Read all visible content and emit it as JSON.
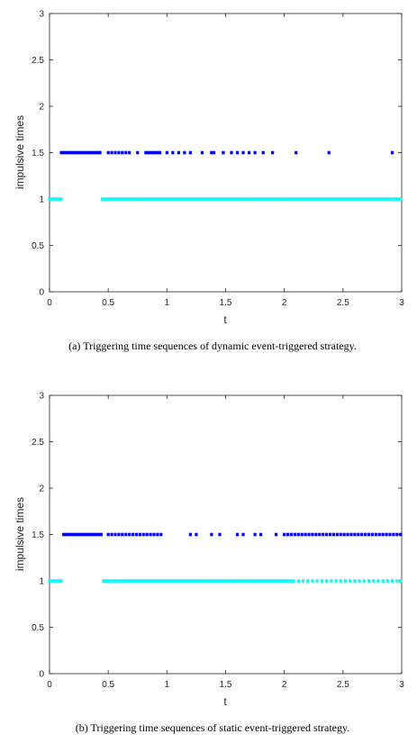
{
  "chart_data": [
    {
      "type": "scatter",
      "caption": "(a)  Triggering time sequences of dynamic event-triggered strategy.",
      "xlabel": "t",
      "ylabel": "impulsive times",
      "xlim": [
        0,
        3
      ],
      "ylim": [
        0,
        3
      ],
      "xticks": [
        "0",
        "0.5",
        "1",
        "1.5",
        "2",
        "2.5",
        "3"
      ],
      "yticks": [
        "0",
        "0.5",
        "1",
        "1.5",
        "2",
        "2.5",
        "3"
      ],
      "grid": false,
      "series": [
        {
          "color": "#0000ee",
          "y": 1.5,
          "x": [
            0.1,
            0.12,
            0.14,
            0.16,
            0.18,
            0.2,
            0.22,
            0.24,
            0.26,
            0.28,
            0.3,
            0.32,
            0.34,
            0.36,
            0.38,
            0.4,
            0.42,
            0.43,
            0.5,
            0.53,
            0.56,
            0.59,
            0.62,
            0.65,
            0.68,
            0.75,
            0.82,
            0.84,
            0.86,
            0.88,
            0.9,
            0.92,
            0.94,
            1.0,
            1.05,
            1.1,
            1.15,
            1.2,
            1.3,
            1.38,
            1.4,
            1.48,
            1.55,
            1.6,
            1.65,
            1.7,
            1.75,
            1.82,
            1.9,
            2.1,
            2.38,
            2.92
          ]
        },
        {
          "color": "#00ffff",
          "y": 1,
          "x": [
            0.0,
            0.02,
            0.04,
            0.06,
            0.08,
            0.1,
            0.45,
            0.47,
            0.49,
            0.51,
            0.53,
            0.55,
            0.57,
            0.59,
            0.61,
            0.63,
            0.65,
            0.67,
            0.69,
            0.71,
            0.73,
            0.75,
            0.77,
            0.79,
            0.81,
            0.83,
            0.85,
            0.87,
            0.89,
            0.91,
            0.93,
            0.95,
            0.97,
            0.99,
            1.01,
            1.03,
            1.05,
            1.07,
            1.09,
            1.11,
            1.13,
            1.15,
            1.17,
            1.19,
            1.21,
            1.23,
            1.25,
            1.27,
            1.29,
            1.31,
            1.33,
            1.35,
            1.37,
            1.39,
            1.41,
            1.43,
            1.45,
            1.47,
            1.49,
            1.51,
            1.53,
            1.55,
            1.57,
            1.59,
            1.61,
            1.63,
            1.65,
            1.67,
            1.69,
            1.71,
            1.73,
            1.75,
            1.77,
            1.79,
            1.81,
            1.83,
            1.85,
            1.87,
            1.89,
            1.91,
            1.93,
            1.95,
            1.97,
            1.99,
            2.01,
            2.03,
            2.05,
            2.07,
            2.09,
            2.11,
            2.13,
            2.15,
            2.17,
            2.19,
            2.21,
            2.23,
            2.25,
            2.27,
            2.29,
            2.31,
            2.33,
            2.35,
            2.37,
            2.39,
            2.41,
            2.43,
            2.45,
            2.47,
            2.49,
            2.51,
            2.53,
            2.55,
            2.57,
            2.59,
            2.61,
            2.63,
            2.65,
            2.67,
            2.69,
            2.71,
            2.73,
            2.75,
            2.77,
            2.79,
            2.81,
            2.83,
            2.85,
            2.87,
            2.89,
            2.91,
            2.93,
            2.95,
            2.97,
            2.99
          ]
        }
      ]
    },
    {
      "type": "scatter",
      "caption": "(b)  Triggering time sequences of static event-triggered strategy.",
      "xlabel": "t",
      "ylabel": "impulsive times",
      "xlim": [
        0,
        3
      ],
      "ylim": [
        0,
        3
      ],
      "xticks": [
        "0",
        "0.5",
        "1",
        "1.5",
        "2",
        "2.5",
        "3"
      ],
      "yticks": [
        "0",
        "0.5",
        "1",
        "1.5",
        "2",
        "2.5",
        "3"
      ],
      "grid": false,
      "series": [
        {
          "color": "#0000ee",
          "y": 1.5,
          "x": [
            0.12,
            0.14,
            0.16,
            0.18,
            0.2,
            0.22,
            0.24,
            0.26,
            0.28,
            0.3,
            0.32,
            0.34,
            0.36,
            0.38,
            0.4,
            0.42,
            0.44,
            0.5,
            0.53,
            0.56,
            0.59,
            0.62,
            0.65,
            0.68,
            0.71,
            0.74,
            0.77,
            0.8,
            0.83,
            0.86,
            0.89,
            0.92,
            0.95,
            1.2,
            1.25,
            1.38,
            1.45,
            1.6,
            1.65,
            1.75,
            1.8,
            1.93,
            2.0,
            2.03,
            2.06,
            2.09,
            2.12,
            2.15,
            2.18,
            2.21,
            2.24,
            2.27,
            2.3,
            2.33,
            2.36,
            2.39,
            2.42,
            2.45,
            2.48,
            2.51,
            2.54,
            2.57,
            2.6,
            2.63,
            2.66,
            2.69,
            2.72,
            2.75,
            2.78,
            2.81,
            2.84,
            2.87,
            2.9,
            2.93,
            2.96,
            2.99
          ]
        },
        {
          "color": "#00ffff",
          "y": 1,
          "x": [
            0.0,
            0.02,
            0.04,
            0.06,
            0.08,
            0.1,
            0.46,
            0.48,
            0.5,
            0.52,
            0.54,
            0.56,
            0.58,
            0.6,
            0.62,
            0.64,
            0.66,
            0.68,
            0.7,
            0.72,
            0.74,
            0.76,
            0.78,
            0.8,
            0.82,
            0.84,
            0.86,
            0.88,
            0.9,
            0.92,
            0.94,
            0.96,
            0.98,
            1.0,
            1.02,
            1.04,
            1.06,
            1.08,
            1.1,
            1.12,
            1.14,
            1.16,
            1.18,
            1.2,
            1.22,
            1.24,
            1.26,
            1.28,
            1.3,
            1.32,
            1.34,
            1.36,
            1.38,
            1.4,
            1.42,
            1.44,
            1.46,
            1.48,
            1.5,
            1.52,
            1.54,
            1.56,
            1.58,
            1.6,
            1.62,
            1.64,
            1.66,
            1.68,
            1.7,
            1.72,
            1.74,
            1.76,
            1.78,
            1.8,
            1.82,
            1.84,
            1.86,
            1.88,
            1.9,
            1.92,
            1.94,
            1.96,
            1.98,
            2.0,
            2.02,
            2.04,
            2.06,
            2.08,
            2.12,
            2.16,
            2.2,
            2.24,
            2.28,
            2.32,
            2.36,
            2.4,
            2.44,
            2.48,
            2.52,
            2.56,
            2.6,
            2.64,
            2.68,
            2.72,
            2.76,
            2.8,
            2.84,
            2.88,
            2.92,
            2.96,
            2.99
          ]
        }
      ]
    }
  ]
}
